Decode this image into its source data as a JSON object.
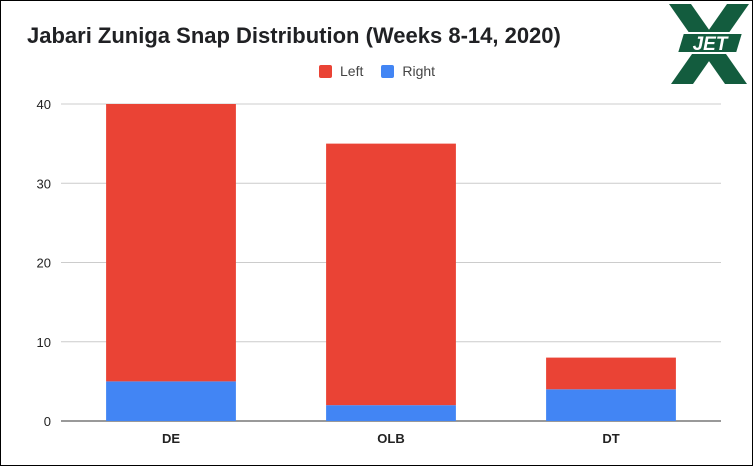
{
  "logo": {
    "text": "JET",
    "icon": "jets-x-logo-icon",
    "colors": {
      "green": "#135c3e",
      "white": "#ffffff"
    }
  },
  "chart_data": {
    "type": "bar",
    "stacked": true,
    "title": "Jabari Zuniga Snap Distribution (Weeks 8-14, 2020)",
    "xlabel": "",
    "ylabel": "",
    "categories": [
      "DE",
      "OLB",
      "DT"
    ],
    "series": [
      {
        "name": "Right",
        "values": [
          5,
          2,
          4
        ],
        "color": "#4285f4"
      },
      {
        "name": "Left",
        "values": [
          35,
          33,
          4
        ],
        "color": "#ea4335"
      }
    ],
    "legend_order": [
      "Left",
      "Right"
    ],
    "legend_position": "top",
    "ylim": [
      0,
      40
    ],
    "yticks": [
      0,
      10,
      20,
      30,
      40
    ],
    "grid": true
  }
}
